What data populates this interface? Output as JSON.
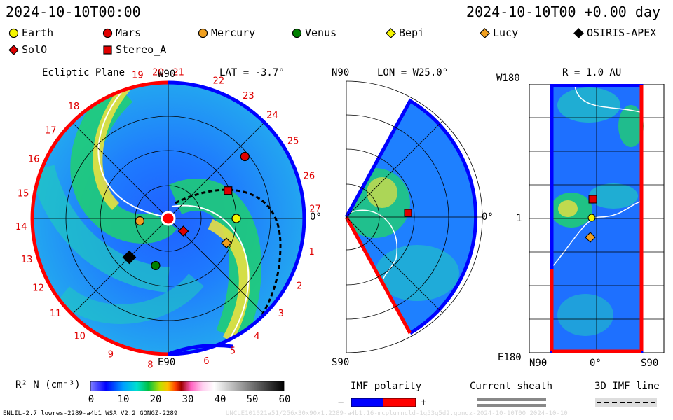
{
  "header": {
    "date": "2024-10-10T00:00",
    "right": "2024-10-10T00 +0.00 day"
  },
  "legend": [
    {
      "name": "Earth",
      "shape": "circle",
      "color": "#f5f500"
    },
    {
      "name": "Mars",
      "shape": "circle",
      "color": "#e00000"
    },
    {
      "name": "Mercury",
      "shape": "circle",
      "color": "#f0a020"
    },
    {
      "name": "Venus",
      "shape": "circle",
      "color": "#008000"
    },
    {
      "name": "Bepi",
      "shape": "diamond",
      "color": "#f5f500"
    },
    {
      "name": "Lucy",
      "shape": "diamond",
      "color": "#f0a020"
    },
    {
      "name": "OSIRIS-APEX",
      "shape": "diamond",
      "color": "#000000"
    },
    {
      "name": "SolO",
      "shape": "diamond",
      "color": "#e00000"
    },
    {
      "name": "Stereo_A",
      "shape": "square",
      "color": "#e00000"
    }
  ],
  "panels": {
    "ecliptic": {
      "title": "Ecliptic Plane",
      "lat_label": "LAT = -3.7°",
      "top_label": "W90",
      "bottom_label": "E90",
      "right_label": "0°",
      "carrington": [
        "19",
        "20",
        "21",
        "22",
        "23",
        "24",
        "25",
        "26",
        "27",
        "1",
        "2",
        "3",
        "4",
        "5",
        "6",
        "8",
        "9",
        "10",
        "11",
        "12",
        "13",
        "14",
        "15",
        "16",
        "17",
        "18"
      ]
    },
    "meridional": {
      "lon_label": "LON = W25.0°",
      "top_label": "N90",
      "bottom_label": "S90",
      "right_label": "0°"
    },
    "shell": {
      "r_label": "R = 1.0 AU",
      "top_left": "W180",
      "mid_left": "1",
      "bottom_left": "E180",
      "bottom_labels": [
        "N90",
        "0°",
        "S90"
      ]
    }
  },
  "colorbar": {
    "label": "R² N (cm⁻³)",
    "ticks": [
      "0",
      "10",
      "20",
      "30",
      "40",
      "50",
      "60"
    ]
  },
  "imf": {
    "title": "IMF polarity",
    "minus": "−",
    "plus": "+",
    "neg_color": "#0000ff",
    "pos_color": "#ff0000"
  },
  "sheath": {
    "title": "Current sheath"
  },
  "line3d": {
    "title": "3D IMF line"
  },
  "footer": {
    "left": "ENLIL-2.7 lowres-2289-a4b1 WSA_V2.2 GONGZ-2289",
    "right": "UNCLE101021a51/256x30x90x1.2289-a4b1.16-mcplumncld-1g53q5d2.gongz-2024-10-10T00  2024-10-10"
  },
  "chart_data": {
    "type": "heatmap",
    "variable": "R² N (cm⁻³)",
    "range": [
      0,
      60
    ],
    "bodies": {
      "ecliptic": [
        {
          "name": "Earth",
          "r_au": 1.0,
          "lon_deg": 0
        },
        {
          "name": "Mars",
          "r_au": 1.45,
          "lon_deg": 39
        },
        {
          "name": "Stereo_A",
          "r_au": 0.97,
          "lon_deg": 25
        },
        {
          "name": "Mercury",
          "r_au": 0.42,
          "lon_deg": -175
        },
        {
          "name": "Venus",
          "r_au": 0.72,
          "lon_deg": -105
        },
        {
          "name": "SolO",
          "r_au": 0.29,
          "lon_deg": -40
        },
        {
          "name": "Lucy",
          "r_au": 0.93,
          "lon_deg": -23
        },
        {
          "name": "OSIRIS-APEX",
          "r_au": 0.81,
          "lon_deg": -135
        }
      ]
    }
  }
}
